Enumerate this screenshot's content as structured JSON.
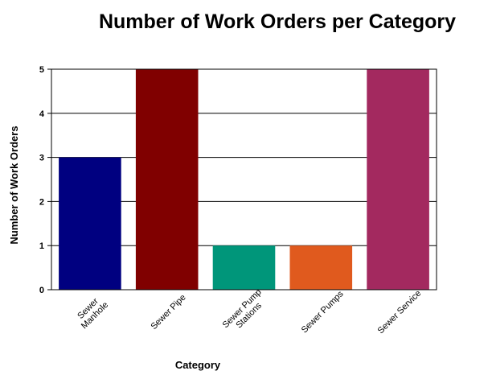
{
  "chart_data": {
    "type": "bar",
    "title": "Number of Work Orders per Category",
    "xlabel": "Category",
    "ylabel": "Number of Work Orders",
    "ylim": [
      0,
      5
    ],
    "yticks": [
      0,
      1,
      2,
      3,
      4,
      5
    ],
    "grid": true,
    "legend": "none",
    "categories": [
      "Sewer Manhole",
      "Sewer Pipe",
      "Sewer Pump Stations",
      "Sewer Pumps",
      "Sewer Service"
    ],
    "category_lines": [
      [
        "Sewer",
        "Manhole"
      ],
      [
        "Sewer Pipe"
      ],
      [
        "Sewer Pump",
        "Stations"
      ],
      [
        "Sewer Pumps"
      ],
      [
        "Sewer Service"
      ]
    ],
    "values": [
      3,
      5,
      1,
      1,
      5
    ],
    "colors": [
      "#000080",
      "#800000",
      "#00967A",
      "#E05A1E",
      "#A3295F"
    ]
  }
}
